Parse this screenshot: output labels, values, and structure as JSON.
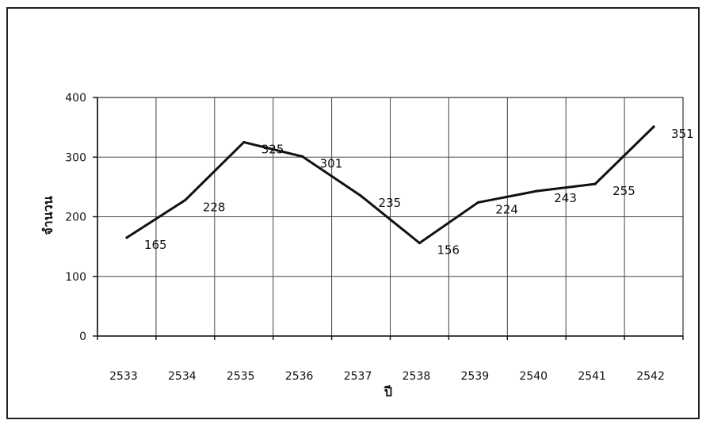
{
  "chart_data": {
    "type": "line",
    "categories": [
      "2533",
      "2534",
      "2535",
      "2536",
      "2537",
      "2538",
      "2539",
      "2540",
      "2541",
      "2542"
    ],
    "series": [
      {
        "values": [
          165,
          228,
          325,
          301,
          235,
          156,
          224,
          243,
          255,
          351
        ]
      }
    ],
    "data_labels": [
      "165",
      "228",
      "325",
      "301",
      "235",
      "156",
      "224",
      "243",
      "255",
      "351"
    ],
    "yticks": [
      "0",
      "100",
      "200",
      "300",
      "400"
    ],
    "ylim": [
      0,
      400
    ],
    "xlabel": "ปี",
    "ylabel": "จำนวน",
    "grid": true,
    "legend": "none",
    "line_color": "#111111"
  }
}
